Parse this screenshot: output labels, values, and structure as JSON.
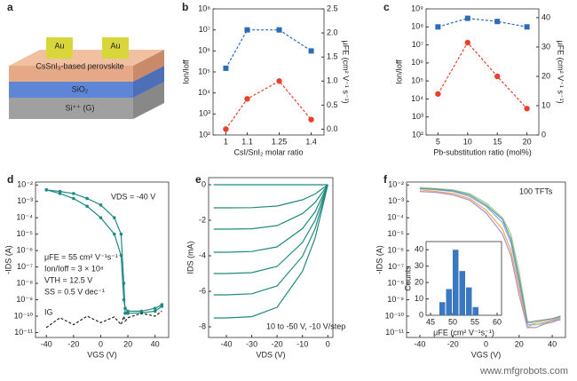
{
  "diagram": {
    "panel": "a",
    "labels": [
      "Au",
      "Au",
      "CsSnI₃-based perovskite",
      "SiO₂",
      "Si⁺⁺ (G)"
    ]
  },
  "watermark": "www.mfgrobots.com",
  "chart_data": [
    {
      "type": "line",
      "panel": "b",
      "xlabel": "CsI/SnI₂ molar ratio",
      "ylabel": "Ion/Ioff",
      "y2label": "μFE (cm² V⁻¹ s⁻¹)",
      "x": [
        1,
        1.1,
        1.25,
        1.4
      ],
      "xlim": [
        0.94,
        1.46
      ],
      "xticks": [
        1,
        1.1,
        1.25,
        1.4
      ],
      "log_y": true,
      "ylim": [
        100,
        100000000
      ],
      "yticks": [
        {
          "value": 100,
          "label": "10²"
        },
        {
          "value": 1000,
          "label": "10³"
        },
        {
          "value": 10000,
          "label": "10⁴"
        },
        {
          "value": 100000,
          "label": "10⁵"
        },
        {
          "value": 1000000,
          "label": "10⁶"
        },
        {
          "value": 10000000,
          "label": "10⁷"
        },
        {
          "value": 100000000,
          "label": "10⁸"
        }
      ],
      "y2lim": [
        -0.12,
        2.5
      ],
      "y2ticks": [
        {
          "value": 0,
          "label": "0.0"
        },
        0.5,
        {
          "value": 1,
          "label": "1.0"
        },
        1.5,
        {
          "value": 2,
          "label": "2.0"
        },
        2.5
      ],
      "series": [
        {
          "color": "#2b6cb8",
          "marker": "square",
          "dashed": true,
          "values": [
            150000,
            10000000,
            10000000,
            1000000
          ]
        },
        {
          "color": "#e8402b",
          "marker": "circle",
          "dashed": true,
          "axis": "y2",
          "values": [
            0,
            0.63,
            1.0,
            0.2
          ]
        }
      ]
    },
    {
      "type": "line",
      "panel": "c",
      "xlabel": "Pb-substitution ratio (mol%)",
      "ylabel": "Ion/Ioff",
      "y2label": "μFE (cm² V⁻¹ s⁻¹)",
      "x": [
        5,
        10,
        15,
        20
      ],
      "xlim": [
        3,
        22
      ],
      "xticks": [
        5,
        10,
        15,
        20
      ],
      "log_y": true,
      "ylim": [
        100,
        1000000000
      ],
      "yticks": [
        {
          "value": 100,
          "label": "10²"
        },
        {
          "value": 1000,
          "label": "10³"
        },
        {
          "value": 10000,
          "label": "10⁴"
        },
        {
          "value": 100000,
          "label": "10⁵"
        },
        {
          "value": 1000000,
          "label": "10⁶"
        },
        {
          "value": 10000000,
          "label": "10⁷"
        },
        {
          "value": 100000000,
          "label": "10⁸"
        },
        {
          "value": 1000000000,
          "label": "10⁹"
        }
      ],
      "y2lim": [
        0,
        43
      ],
      "y2ticks": [
        0,
        10,
        20,
        30,
        40
      ],
      "series": [
        {
          "color": "#2b6cb8",
          "marker": "square",
          "dashed": true,
          "values": [
            100000000,
            300000000,
            200000000,
            100000000
          ]
        },
        {
          "color": "#e8402b",
          "marker": "circle",
          "dashed": true,
          "axis": "y2",
          "values": [
            14,
            31.5,
            20,
            9
          ]
        }
      ]
    },
    {
      "type": "line",
      "panel": "d",
      "xlabel": "VGS (V)",
      "ylabel": "-IDS (A)",
      "annotations": [
        "VDS = -40 V",
        "μFE = 55 cm² V⁻¹s⁻¹",
        "Ion/Ioff = 3 × 10⁸",
        "VTH = 12.5 V",
        "SS = 0.5 V dec⁻¹",
        "IG"
      ],
      "x": [
        -40,
        -30,
        -20,
        -10,
        0,
        10,
        15,
        17,
        18,
        20,
        30,
        40,
        45
      ],
      "xlim": [
        -48,
        50
      ],
      "xticks": [
        -40,
        -20,
        0,
        20,
        40
      ],
      "log_y": true,
      "ylim": [
        5e-12,
        0.015
      ],
      "yticks": [
        {
          "value": 1e-11,
          "label": "10⁻¹¹"
        },
        {
          "value": 1e-10,
          "label": "10⁻¹⁰"
        },
        {
          "value": 1e-09,
          "label": "10⁻⁹"
        },
        {
          "value": 1e-08,
          "label": "10⁻⁸"
        },
        {
          "value": 1e-07,
          "label": "10⁻⁷"
        },
        {
          "value": 1e-06,
          "label": "10⁻⁶"
        },
        {
          "value": 1e-05,
          "label": "10⁻⁵"
        },
        {
          "value": 0.0001,
          "label": "10⁻⁴"
        },
        {
          "value": 0.001,
          "label": "10⁻³"
        },
        {
          "value": 0.01,
          "label": "10⁻²"
        }
      ],
      "series": [
        {
          "color": "#1f8a80",
          "marker": "circle",
          "values": [
            0.005,
            0.004,
            0.003,
            0.0015,
            0.0006,
            0.0001,
            1e-05,
            1e-08,
            1.5e-10,
            1.5e-10,
            1.6e-10,
            2e-10,
            4e-10
          ]
        },
        {
          "color": "#1f8a80",
          "marker": "circle",
          "values": [
            0.005,
            0.003,
            0.0015,
            0.0005,
            0.0001,
            1e-05,
            5e-07,
            1e-09,
            3e-10,
            2e-10,
            2e-10,
            3e-10,
            5e-10
          ]
        },
        {
          "color": "#222222",
          "dashed": true,
          "values": [
            2e-11,
            8e-11,
            3e-11,
            1e-10,
            4e-11,
            9e-11,
            3e-11,
            1e-10,
            5e-11,
            8e-11,
            1.5e-10,
            1e-10,
            2e-10
          ]
        }
      ]
    },
    {
      "type": "line",
      "panel": "e",
      "xlabel": "VDS (V)",
      "ylabel": "IDS (mA)",
      "annotations": [
        "10 to -50 V, -10 V/step"
      ],
      "x": [
        -45,
        -40,
        -30,
        -20,
        -10,
        -5,
        0
      ],
      "xlim": [
        -47,
        2
      ],
      "xticks": [
        -40,
        -30,
        -20,
        -10,
        0
      ],
      "ylim": [
        -8.6,
        0.4
      ],
      "yticks": [
        0,
        -2,
        -4,
        -6,
        -8
      ],
      "series": [
        {
          "color": "#1f8a80",
          "values": [
            0,
            0,
            0,
            0,
            0,
            0,
            0
          ]
        },
        {
          "color": "#1f8a80",
          "values": [
            -1.3,
            -1.3,
            -1.29,
            -1.2,
            -0.85,
            -0.52,
            0
          ]
        },
        {
          "color": "#1f8a80",
          "values": [
            -2.5,
            -2.5,
            -2.48,
            -2.3,
            -1.63,
            -1,
            0
          ]
        },
        {
          "color": "#1f8a80",
          "values": [
            -3.8,
            -3.8,
            -3.76,
            -3.5,
            -2.47,
            -1.52,
            0
          ]
        },
        {
          "color": "#1f8a80",
          "values": [
            -5,
            -5,
            -4.95,
            -4.6,
            -3.25,
            -2,
            0
          ]
        },
        {
          "color": "#1f8a80",
          "values": [
            -6.2,
            -6.2,
            -6.14,
            -5.7,
            -4.03,
            -2.48,
            0
          ]
        },
        {
          "color": "#1f8a80",
          "values": [
            -7.5,
            -7.5,
            -7.43,
            -6.9,
            -4.88,
            -3,
            0
          ]
        }
      ]
    },
    {
      "type": "line",
      "panel": "f",
      "xlabel": "VGS (V)",
      "ylabel": "-IDS (A)",
      "annotations": [
        "100 TFTs"
      ],
      "x": [
        -40,
        -30,
        -20,
        -10,
        0,
        10,
        15,
        20,
        25,
        30,
        40,
        45
      ],
      "xlim": [
        -48,
        48
      ],
      "xticks": [
        -40,
        -20,
        0,
        20,
        40
      ],
      "log_y": true,
      "ylim": [
        5e-12,
        0.015
      ],
      "yticks": [
        {
          "value": 1e-11,
          "label": "10⁻¹¹"
        },
        {
          "value": 1e-10,
          "label": "10⁻¹⁰"
        },
        {
          "value": 1e-09,
          "label": "10⁻⁹"
        },
        {
          "value": 1e-08,
          "label": "10⁻⁸"
        },
        {
          "value": 1e-07,
          "label": "10⁻⁷"
        },
        {
          "value": 1e-06,
          "label": "10⁻⁶"
        },
        {
          "value": 1e-05,
          "label": "10⁻⁵"
        },
        {
          "value": 0.0001,
          "label": "10⁻⁴"
        },
        {
          "value": 0.001,
          "label": "10⁻³"
        },
        {
          "value": 0.01,
          "label": "10⁻²"
        }
      ],
      "series": [
        {
          "color": "#7fb3d5",
          "values": [
            0.006,
            0.005,
            0.004,
            0.002,
            0.0005,
            5e-05,
            3e-06,
            1e-08,
            3e-11,
            3e-11,
            5e-11,
            8e-11
          ]
        },
        {
          "color": "#f0a860",
          "values": [
            0.005,
            0.004,
            0.003,
            0.0015,
            0.0003,
            2e-05,
            1e-06,
            5e-09,
            2e-11,
            4e-11,
            6e-11,
            9e-11
          ]
        },
        {
          "color": "#9ccf8a",
          "values": [
            0.007,
            0.006,
            0.005,
            0.003,
            0.0008,
            0.0001,
            1e-05,
            5e-08,
            5e-11,
            3e-11,
            4e-11,
            7e-11
          ]
        },
        {
          "color": "#b08fc7",
          "values": [
            0.004,
            0.0035,
            0.0025,
            0.0012,
            0.0002,
            1e-05,
            5e-07,
            2e-09,
            2e-11,
            2e-11,
            5e-11,
            6e-11
          ]
        },
        {
          "color": "#6e8fa8",
          "values": [
            0.006,
            0.0055,
            0.0045,
            0.0025,
            0.0006,
            8e-05,
            5e-06,
            2e-08,
            4e-11,
            5e-11,
            7e-11,
            1e-10
          ]
        }
      ]
    },
    {
      "type": "histogram",
      "xlabel": "μFE (cm² V⁻¹s⁻¹)",
      "ylabel": "Counts",
      "color": "#3a78c2",
      "bins": [
        47,
        48.5,
        50,
        51.5,
        53,
        54.5,
        56
      ],
      "values": [
        8,
        16,
        40,
        27,
        17,
        5
      ],
      "xlim": [
        44,
        61
      ],
      "xticks": [
        45,
        50,
        55,
        60
      ],
      "ylim": [
        0,
        45
      ],
      "yticks": [
        0,
        10,
        20,
        30,
        40
      ]
    }
  ]
}
